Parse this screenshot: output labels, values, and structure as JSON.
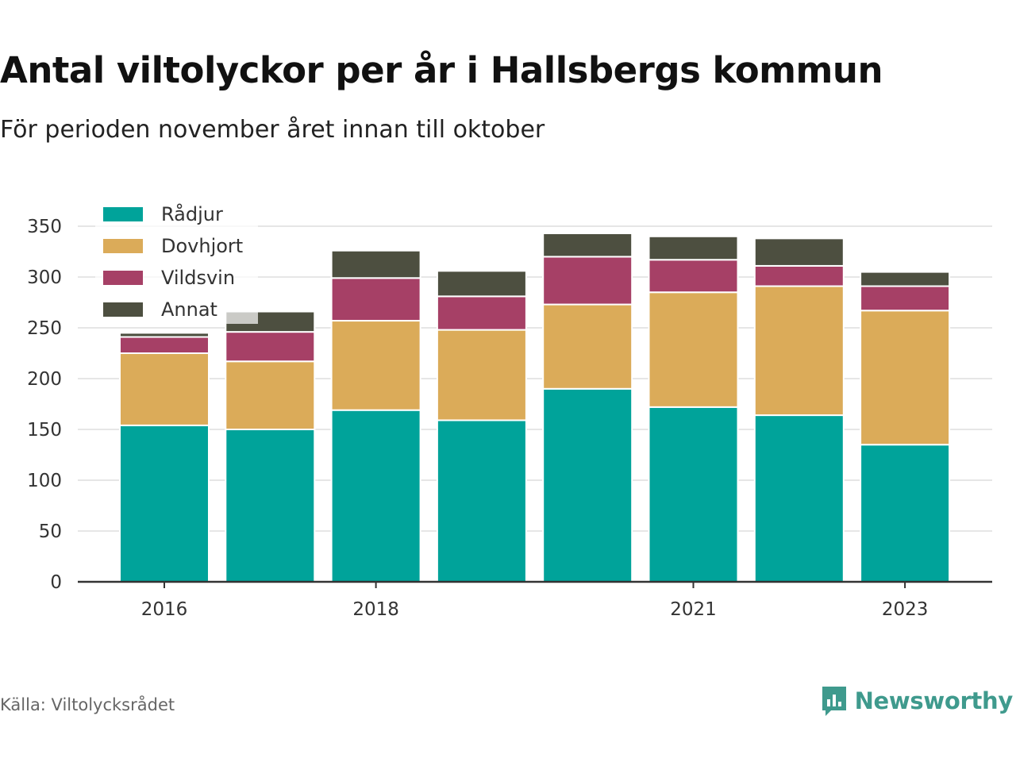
{
  "header": {
    "title": "Antal viltolyckor per år i Hallsbergs kommun",
    "subtitle": "För perioden november året innan till oktober"
  },
  "footer": {
    "source": "Källa: Viltolycksrådet",
    "brand": "Newsworthy",
    "brand_icon": "bar-chart-speech-bubble-icon"
  },
  "colors": {
    "radjur": "#00a39a",
    "dovhjort": "#dbab59",
    "vildsvin": "#a64066",
    "annat": "#4d4f40",
    "legend_backdrop": "#d9d9d9",
    "grid": "#dddddd",
    "axis": "#333333",
    "brand": "#3f9a8d"
  },
  "chart_data": {
    "type": "bar",
    "stacked": true,
    "categories": [
      "2016",
      "2017",
      "2018",
      "2019",
      "2020",
      "2021",
      "2022",
      "2023"
    ],
    "x_tick_labels": [
      "2016",
      "",
      "2018",
      "",
      "",
      "2021",
      "",
      "2023"
    ],
    "series": [
      {
        "name": "Rådjur",
        "color": "#00a39a",
        "values": [
          154,
          150,
          169,
          159,
          190,
          172,
          164,
          135
        ]
      },
      {
        "name": "Dovhjort",
        "color": "#dbab59",
        "values": [
          71,
          67,
          88,
          89,
          83,
          113,
          127,
          132
        ]
      },
      {
        "name": "Vildsvin",
        "color": "#a64066",
        "values": [
          16,
          29,
          42,
          33,
          47,
          32,
          20,
          24
        ]
      },
      {
        "name": "Annat",
        "color": "#4d4f40",
        "values": [
          4,
          20,
          27,
          25,
          23,
          23,
          27,
          14
        ]
      }
    ],
    "ylim": [
      0,
      350
    ],
    "yticks": [
      0,
      50,
      100,
      150,
      200,
      250,
      300,
      350
    ],
    "xlabel": "",
    "ylabel": "",
    "grid": true,
    "legend_position": "top-left"
  }
}
